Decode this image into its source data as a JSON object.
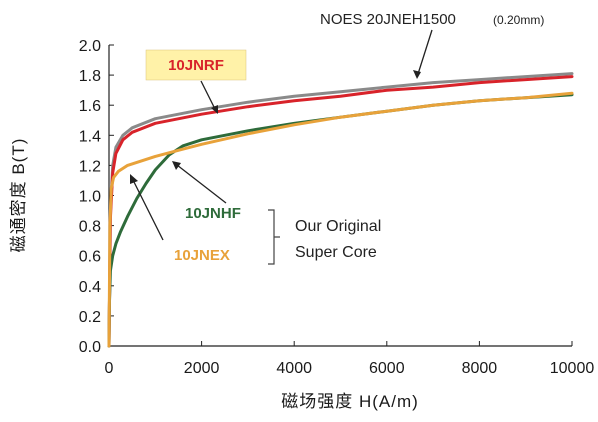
{
  "chart_data": {
    "type": "line",
    "xlabel": "磁场强度 H(A/m)",
    "ylabel": "磁通密度 B(T)",
    "xlim": [
      0,
      10000
    ],
    "ylim": [
      0,
      2.0
    ],
    "xticks": [
      "0",
      "2000",
      "4000",
      "6000",
      "8000",
      "10000"
    ],
    "yticks": [
      "0.0",
      "0.2",
      "0.4",
      "0.6",
      "0.8",
      "1.0",
      "1.2",
      "1.4",
      "1.6",
      "1.8",
      "2.0"
    ],
    "grid": false,
    "series": [
      {
        "name": "NOES 20JNEH1500",
        "color": "#8a8a8a",
        "x": [
          0,
          30,
          80,
          150,
          300,
          500,
          1000,
          2000,
          3000,
          4000,
          5000,
          6000,
          7000,
          8000,
          9000,
          10000
        ],
        "y": [
          0.0,
          0.9,
          1.2,
          1.32,
          1.4,
          1.45,
          1.51,
          1.57,
          1.62,
          1.66,
          1.69,
          1.72,
          1.75,
          1.77,
          1.79,
          1.81
        ]
      },
      {
        "name": "10JNRF",
        "color": "#d8232a",
        "x": [
          0,
          30,
          80,
          150,
          300,
          500,
          1000,
          2000,
          3000,
          4000,
          5000,
          6000,
          7000,
          8000,
          9000,
          10000
        ],
        "y": [
          0.0,
          0.85,
          1.15,
          1.28,
          1.37,
          1.42,
          1.48,
          1.54,
          1.59,
          1.63,
          1.66,
          1.7,
          1.72,
          1.75,
          1.77,
          1.79
        ]
      },
      {
        "name": "10JNHF",
        "color": "#2e6b3a",
        "x": [
          0,
          10,
          30,
          80,
          150,
          250,
          400,
          600,
          800,
          1000,
          1300,
          1600,
          2000,
          2500,
          3000,
          4000,
          5000,
          6000,
          7000,
          8000,
          9000,
          10000
        ],
        "y": [
          0.0,
          0.3,
          0.5,
          0.6,
          0.68,
          0.76,
          0.86,
          0.98,
          1.08,
          1.17,
          1.27,
          1.33,
          1.37,
          1.4,
          1.43,
          1.48,
          1.52,
          1.56,
          1.6,
          1.63,
          1.65,
          1.67
        ]
      },
      {
        "name": "10JNEX",
        "color": "#e8a23a",
        "x": [
          0,
          20,
          50,
          100,
          200,
          400,
          700,
          1000,
          1500,
          2000,
          3000,
          4000,
          5000,
          6000,
          7000,
          8000,
          9000,
          10000
        ],
        "y": [
          0.0,
          0.8,
          1.05,
          1.12,
          1.16,
          1.2,
          1.23,
          1.26,
          1.3,
          1.34,
          1.41,
          1.47,
          1.52,
          1.56,
          1.6,
          1.63,
          1.65,
          1.68
        ]
      }
    ],
    "annotations": {
      "noes_label": "NOES 20JNEH1500",
      "noes_thickness": "(0.20mm)",
      "rf_label": "10JNRF",
      "hf_label": "10JNHF",
      "ex_label": "10JNEX",
      "group_line1": "Our Original",
      "group_line2": "Super Core"
    },
    "colors": {
      "rf_box_bg": "#fff2a8",
      "rf_text": "#d8232a",
      "hf_text": "#2e6b3a",
      "ex_text": "#e8a23a",
      "axis": "#222222"
    }
  }
}
